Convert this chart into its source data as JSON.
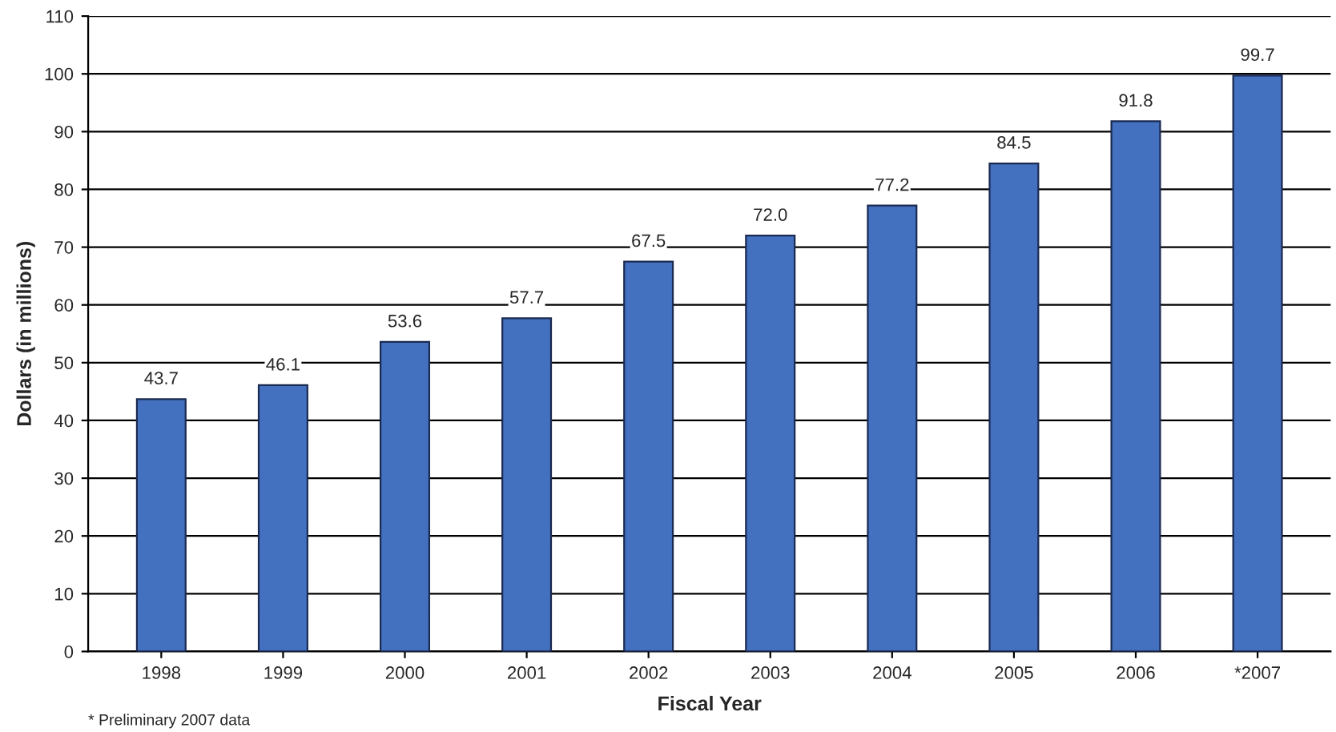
{
  "chart_data": {
    "type": "bar",
    "xlabel": "Fiscal Year",
    "ylabel": "Dollars (in millions)",
    "categories": [
      "1998",
      "1999",
      "2000",
      "2001",
      "2002",
      "2003",
      "2004",
      "2005",
      "2006",
      "*2007"
    ],
    "values": [
      43.7,
      46.1,
      53.6,
      57.7,
      67.5,
      72.0,
      77.2,
      84.5,
      91.8,
      99.7
    ],
    "value_labels": [
      "43.7",
      "46.1",
      "53.6",
      "57.7",
      "67.5",
      "72.0",
      "77.2",
      "84.5",
      "91.8",
      "99.7"
    ],
    "color": "#4470c0",
    "ylim": [
      0,
      110
    ],
    "yticks": [
      0,
      10,
      20,
      30,
      40,
      50,
      60,
      70,
      80,
      90,
      100,
      110
    ],
    "grid": "y",
    "annotations": [
      "* Preliminary 2007 data"
    ]
  }
}
